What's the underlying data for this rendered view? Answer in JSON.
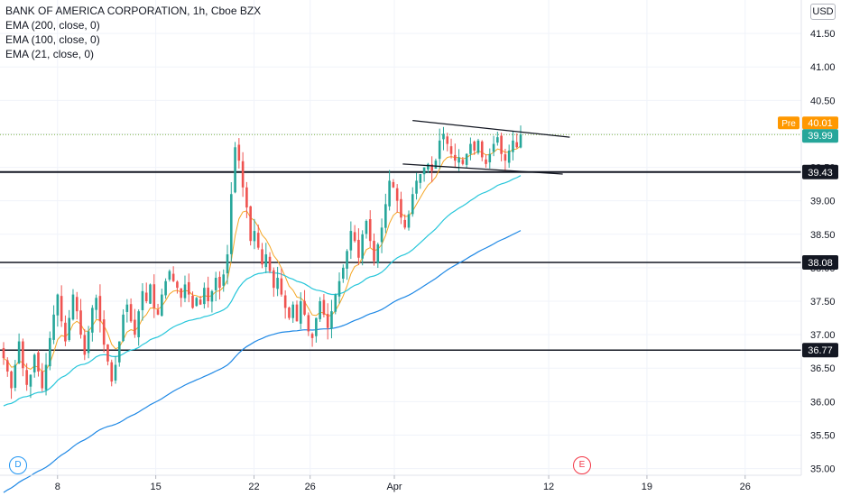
{
  "legend": {
    "title": "BANK OF AMERICA CORPORATION, 1h, Cboe BZX",
    "ema200": "EMA (200, close, 0)",
    "ema100": "EMA (100, close, 0)",
    "ema21": "EMA (21, close, 0)"
  },
  "currency": "USD",
  "markers": {
    "dividend": "D",
    "earnings": "E"
  },
  "chart_data": {
    "type": "candlestick",
    "title": "BANK OF AMERICA CORPORATION, 1h, Cboe BZX",
    "ylim": [
      34.9,
      42.0
    ],
    "y_ticks": [
      35.0,
      35.5,
      36.0,
      36.5,
      37.0,
      37.5,
      38.0,
      38.5,
      39.0,
      39.5,
      40.0,
      40.5,
      41.0,
      41.5
    ],
    "y_tick_labels": [
      "35.00",
      "35.50",
      "36.00",
      "36.50",
      "37.00",
      "37.50",
      "38.00",
      "38.50",
      "39.00",
      "39.50",
      "40.00",
      "40.50",
      "41.00",
      "41.50"
    ],
    "x_ticks": [
      {
        "label": "8",
        "day": 8
      },
      {
        "label": "15",
        "day": 15
      },
      {
        "label": "22",
        "day": 22
      },
      {
        "label": "26",
        "day": 26
      },
      {
        "label": "Apr",
        "day": 32
      },
      {
        "label": "12",
        "day": 43
      },
      {
        "label": "19",
        "day": 50
      },
      {
        "label": "26",
        "day": 57
      }
    ],
    "x_range_days": [
      3.9,
      61
    ],
    "pre_market": {
      "label": "Pre",
      "value": "40.01"
    },
    "last_price": {
      "value": "39.99",
      "y": 39.99
    },
    "horizontal_levels": [
      {
        "value": 39.43,
        "label": "39.43",
        "width": 2
      },
      {
        "value": 38.08,
        "label": "38.08",
        "width": 1.5
      },
      {
        "value": 36.77,
        "label": "36.77",
        "width": 1.5
      }
    ],
    "trend_lines": [
      {
        "from": [
          33.3,
          40.2
        ],
        "to": [
          44.5,
          39.95
        ]
      },
      {
        "from": [
          32.6,
          39.55
        ],
        "to": [
          44.0,
          39.4
        ]
      }
    ],
    "closes": [
      36.65,
      36.45,
      36.2,
      36.55,
      36.9,
      36.5,
      36.25,
      36.4,
      36.7,
      36.45,
      36.2,
      36.55,
      36.95,
      37.3,
      37.6,
      37.2,
      36.9,
      37.25,
      37.6,
      37.35,
      37.0,
      36.7,
      37.05,
      37.4,
      37.55,
      37.2,
      36.85,
      36.6,
      36.3,
      36.55,
      36.9,
      37.3,
      37.45,
      37.2,
      37.0,
      37.35,
      37.65,
      37.5,
      37.75,
      37.4,
      37.3,
      37.6,
      37.8,
      37.95,
      37.8,
      37.7,
      37.55,
      37.75,
      37.6,
      37.4,
      37.55,
      37.45,
      37.7,
      37.5,
      37.65,
      37.85,
      37.7,
      37.9,
      38.2,
      39.1,
      39.8,
      39.6,
      39.2,
      38.9,
      38.4,
      38.55,
      38.3,
      38.05,
      38.2,
      37.95,
      37.7,
      37.85,
      37.6,
      37.4,
      37.25,
      37.45,
      37.2,
      37.5,
      37.3,
      37.05,
      36.95,
      37.25,
      37.5,
      37.3,
      37.1,
      37.35,
      37.6,
      37.8,
      38.0,
      38.25,
      38.55,
      38.4,
      38.15,
      38.5,
      38.7,
      38.4,
      38.1,
      38.35,
      38.6,
      38.95,
      39.3,
      39.2,
      39.0,
      38.75,
      38.6,
      38.8,
      39.1,
      39.3,
      39.4,
      39.5,
      39.55,
      39.45,
      39.6,
      39.9,
      40.0,
      39.85,
      39.7,
      39.6,
      39.65,
      39.55,
      39.7,
      39.85,
      39.75,
      39.9,
      39.65,
      39.55,
      39.7,
      39.85,
      39.95,
      39.7,
      39.6,
      39.75,
      39.9,
      39.8,
      39.99
    ]
  }
}
